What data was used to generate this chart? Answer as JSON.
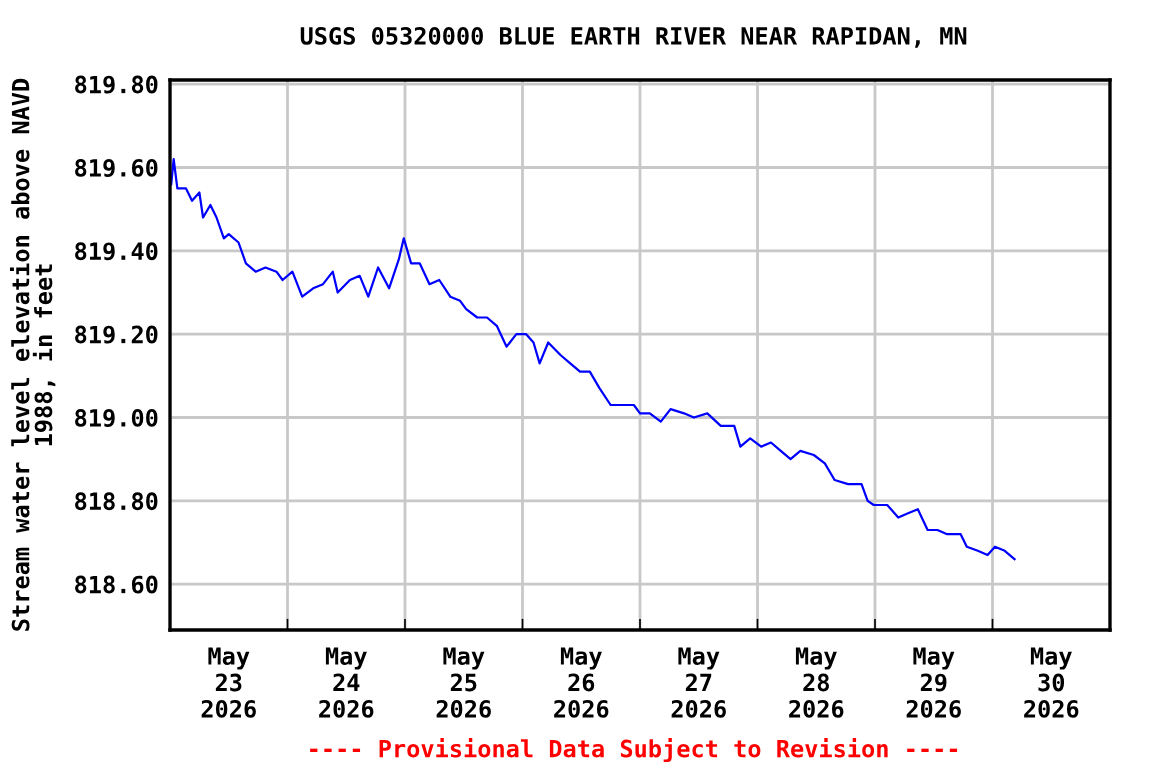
{
  "chart_data": {
    "type": "line",
    "title": "USGS 05320000 BLUE EARTH RIVER NEAR RAPIDAN, MN",
    "ylabel": "Stream water level elevation above NAVD\n1988, in feet",
    "annotations": [
      "---- Provisional Data Subject to Revision ----"
    ],
    "x": [
      "2026-05-23T00:15",
      "2026-05-23T00:45",
      "2026-05-23T01:30",
      "2026-05-23T03:15",
      "2026-05-23T04:30",
      "2026-05-23T06:00",
      "2026-05-23T06:45",
      "2026-05-23T08:15",
      "2026-05-23T09:30",
      "2026-05-23T11:00",
      "2026-05-23T12:00",
      "2026-05-23T14:00",
      "2026-05-23T15:30",
      "2026-05-23T17:30",
      "2026-05-23T19:30",
      "2026-05-23T21:45",
      "2026-05-23T23:00",
      "2026-05-24T01:00",
      "2026-05-24T03:00",
      "2026-05-24T05:15",
      "2026-05-24T07:15",
      "2026-05-24T09:15",
      "2026-05-24T10:15",
      "2026-05-24T12:45",
      "2026-05-24T14:45",
      "2026-05-24T16:30",
      "2026-05-24T18:30",
      "2026-05-24T20:45",
      "2026-05-24T22:45",
      "2026-05-24T23:45",
      "2026-05-25T01:15",
      "2026-05-25T03:00",
      "2026-05-25T05:00",
      "2026-05-25T07:00",
      "2026-05-25T09:15",
      "2026-05-25T11:15",
      "2026-05-25T12:30",
      "2026-05-25T14:45",
      "2026-05-25T16:45",
      "2026-05-25T18:45",
      "2026-05-25T20:45",
      "2026-05-25T22:45",
      "2026-05-26T00:45",
      "2026-05-26T02:15",
      "2026-05-26T03:30",
      "2026-05-26T05:15",
      "2026-05-26T07:45",
      "2026-05-26T09:45",
      "2026-05-26T11:45",
      "2026-05-26T13:45",
      "2026-05-26T15:45",
      "2026-05-26T18:00",
      "2026-05-26T20:00",
      "2026-05-26T22:45",
      "2026-05-27T00:00",
      "2026-05-27T02:00",
      "2026-05-27T04:15",
      "2026-05-27T06:15",
      "2026-05-27T09:00",
      "2026-05-27T11:00",
      "2026-05-27T13:45",
      "2026-05-27T16:30",
      "2026-05-27T19:15",
      "2026-05-27T20:30",
      "2026-05-27T22:30",
      "2026-05-28T00:45",
      "2026-05-28T02:45",
      "2026-05-28T04:45",
      "2026-05-28T06:45",
      "2026-05-28T08:45",
      "2026-05-28T11:30",
      "2026-05-28T13:45",
      "2026-05-28T15:45",
      "2026-05-28T18:30",
      "2026-05-28T21:15",
      "2026-05-28T22:30",
      "2026-05-28T23:45",
      "2026-05-29T02:30",
      "2026-05-29T04:45",
      "2026-05-29T06:45",
      "2026-05-29T08:45",
      "2026-05-29T10:45",
      "2026-05-29T12:45",
      "2026-05-29T14:45",
      "2026-05-29T17:30",
      "2026-05-29T18:45",
      "2026-05-29T21:00",
      "2026-05-29T23:00",
      "2026-05-30T00:30",
      "2026-05-30T02:30",
      "2026-05-30T04:30"
    ],
    "series": [
      {
        "color": "#0000ff",
        "values": [
          819.56,
          819.62,
          819.55,
          819.55,
          819.52,
          819.54,
          819.48,
          819.51,
          819.48,
          819.43,
          819.44,
          819.42,
          819.37,
          819.35,
          819.36,
          819.35,
          819.33,
          819.35,
          819.29,
          819.31,
          819.32,
          819.35,
          819.3,
          819.33,
          819.34,
          819.29,
          819.36,
          819.31,
          819.38,
          819.43,
          819.37,
          819.37,
          819.32,
          819.33,
          819.29,
          819.28,
          819.26,
          819.24,
          819.24,
          819.22,
          819.17,
          819.2,
          819.2,
          819.18,
          819.13,
          819.18,
          819.15,
          819.13,
          819.11,
          819.11,
          819.07,
          819.03,
          819.03,
          819.03,
          819.01,
          819.01,
          818.99,
          819.02,
          819.01,
          819.0,
          819.01,
          818.98,
          818.98,
          818.93,
          818.95,
          818.93,
          818.94,
          818.92,
          818.9,
          818.92,
          818.91,
          818.89,
          818.85,
          818.84,
          818.84,
          818.8,
          818.79,
          818.79,
          818.76,
          818.77,
          818.78,
          818.73,
          818.73,
          818.72,
          818.72,
          818.69,
          818.68,
          818.67,
          818.69,
          818.68,
          818.66
        ]
      }
    ],
    "xlim": [
      "2026-05-23T00:00",
      "2026-05-31T00:00"
    ],
    "xticks": [
      {
        "value": "2026-05-23T00:00",
        "label": null
      },
      {
        "value": "2026-05-24T00:00",
        "label": null
      },
      {
        "value": "2026-05-25T00:00",
        "label": null
      },
      {
        "value": "2026-05-26T00:00",
        "label": null
      },
      {
        "value": "2026-05-27T00:00",
        "label": null
      },
      {
        "value": "2026-05-28T00:00",
        "label": null
      },
      {
        "value": "2026-05-29T00:00",
        "label": null
      },
      {
        "value": "2026-05-30T00:00",
        "label": null
      },
      {
        "value": "2026-05-31T00:00",
        "label": null
      },
      {
        "value": "2026-05-23T12:00",
        "label": "May\n23\n2026"
      },
      {
        "value": "2026-05-24T12:00",
        "label": "May\n24\n2026"
      },
      {
        "value": "2026-05-25T12:00",
        "label": "May\n25\n2026"
      },
      {
        "value": "2026-05-26T12:00",
        "label": "May\n26\n2026"
      },
      {
        "value": "2026-05-27T12:00",
        "label": "May\n27\n2026"
      },
      {
        "value": "2026-05-28T12:00",
        "label": "May\n28\n2026"
      },
      {
        "value": "2026-05-29T12:00",
        "label": "May\n29\n2026"
      },
      {
        "value": "2026-05-30T12:00",
        "label": "May\n30\n2026"
      }
    ],
    "ylim": [
      818.49,
      819.81
    ],
    "yticks": [
      {
        "value": 818.6,
        "label": "818.60"
      },
      {
        "value": 818.8,
        "label": "818.80"
      },
      {
        "value": 819.0,
        "label": "819.00"
      },
      {
        "value": 819.2,
        "label": "819.20"
      },
      {
        "value": 819.4,
        "label": "819.40"
      },
      {
        "value": 819.6,
        "label": "819.60"
      },
      {
        "value": 819.8,
        "label": "819.80"
      }
    ],
    "grid": true
  }
}
